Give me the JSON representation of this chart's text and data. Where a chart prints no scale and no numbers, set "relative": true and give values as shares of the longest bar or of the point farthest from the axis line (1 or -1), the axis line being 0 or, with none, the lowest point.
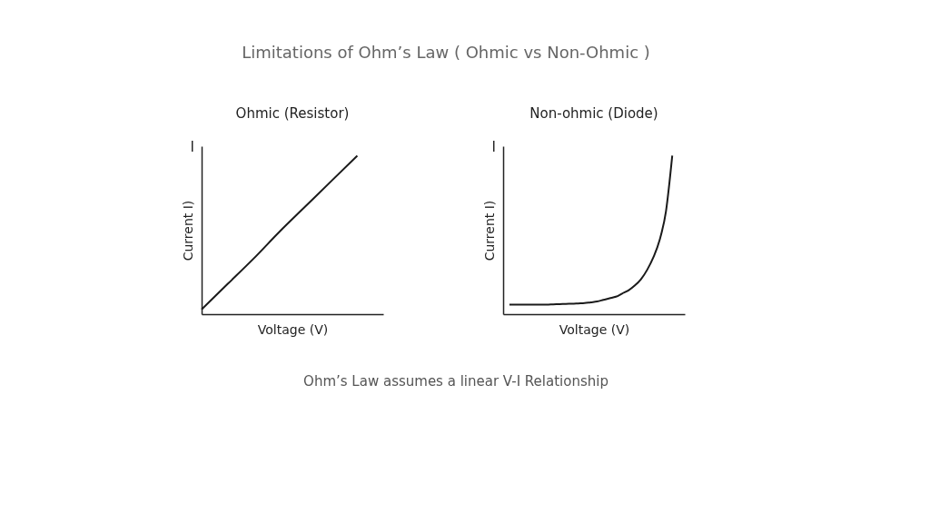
{
  "chart_data": [
    {
      "type": "other",
      "title": "Limitations of Ohm’s Law ( Ohmic vs Non-Ohmic )",
      "annotations": [
        "Ohm’s Law assumes a linear V-I Relationship"
      ]
    },
    {
      "type": "line",
      "title": "Ohmic (Resistor)",
      "xlabel": "Voltage (V)",
      "ylabel": "Current I)",
      "annotations": [
        "I"
      ],
      "relative": true,
      "grid": false,
      "legend": false,
      "marker": "none",
      "line_style": "solid",
      "categories": [
        null,
        null,
        null,
        null,
        null,
        null,
        null,
        null
      ],
      "series": [
        {
          "color": "#1a1a1a",
          "values": [
            0.03,
            0.19,
            0.35,
            0.52,
            0.68,
            0.84,
            1.0,
            null
          ]
        }
      ]
    },
    {
      "type": "line",
      "title": "Non-ohmic (Diode)",
      "xlabel": "Voltage (V)",
      "ylabel": "Current I)",
      "annotations": [
        "I"
      ],
      "relative": true,
      "grid": false,
      "legend": false,
      "marker": "none",
      "line_style": "solid",
      "categories": [
        null,
        null,
        null,
        null,
        null,
        null,
        null,
        null,
        null,
        null,
        null,
        null,
        null,
        null,
        null,
        null,
        null,
        null,
        null,
        null,
        null,
        null,
        null,
        null,
        null,
        null,
        null,
        null,
        null,
        null
      ],
      "series": [
        {
          "color": "#1a1a1a",
          "values": [
            null,
            0.06,
            0.06,
            0.06,
            0.06,
            0.06,
            0.06,
            0.06,
            0.062,
            0.063,
            0.065,
            0.066,
            0.068,
            0.07,
            0.075,
            0.08,
            0.09,
            0.1,
            0.11,
            0.13,
            0.15,
            0.18,
            0.22,
            0.28,
            0.36,
            0.47,
            0.65,
            1.0,
            null,
            null
          ]
        }
      ]
    }
  ]
}
